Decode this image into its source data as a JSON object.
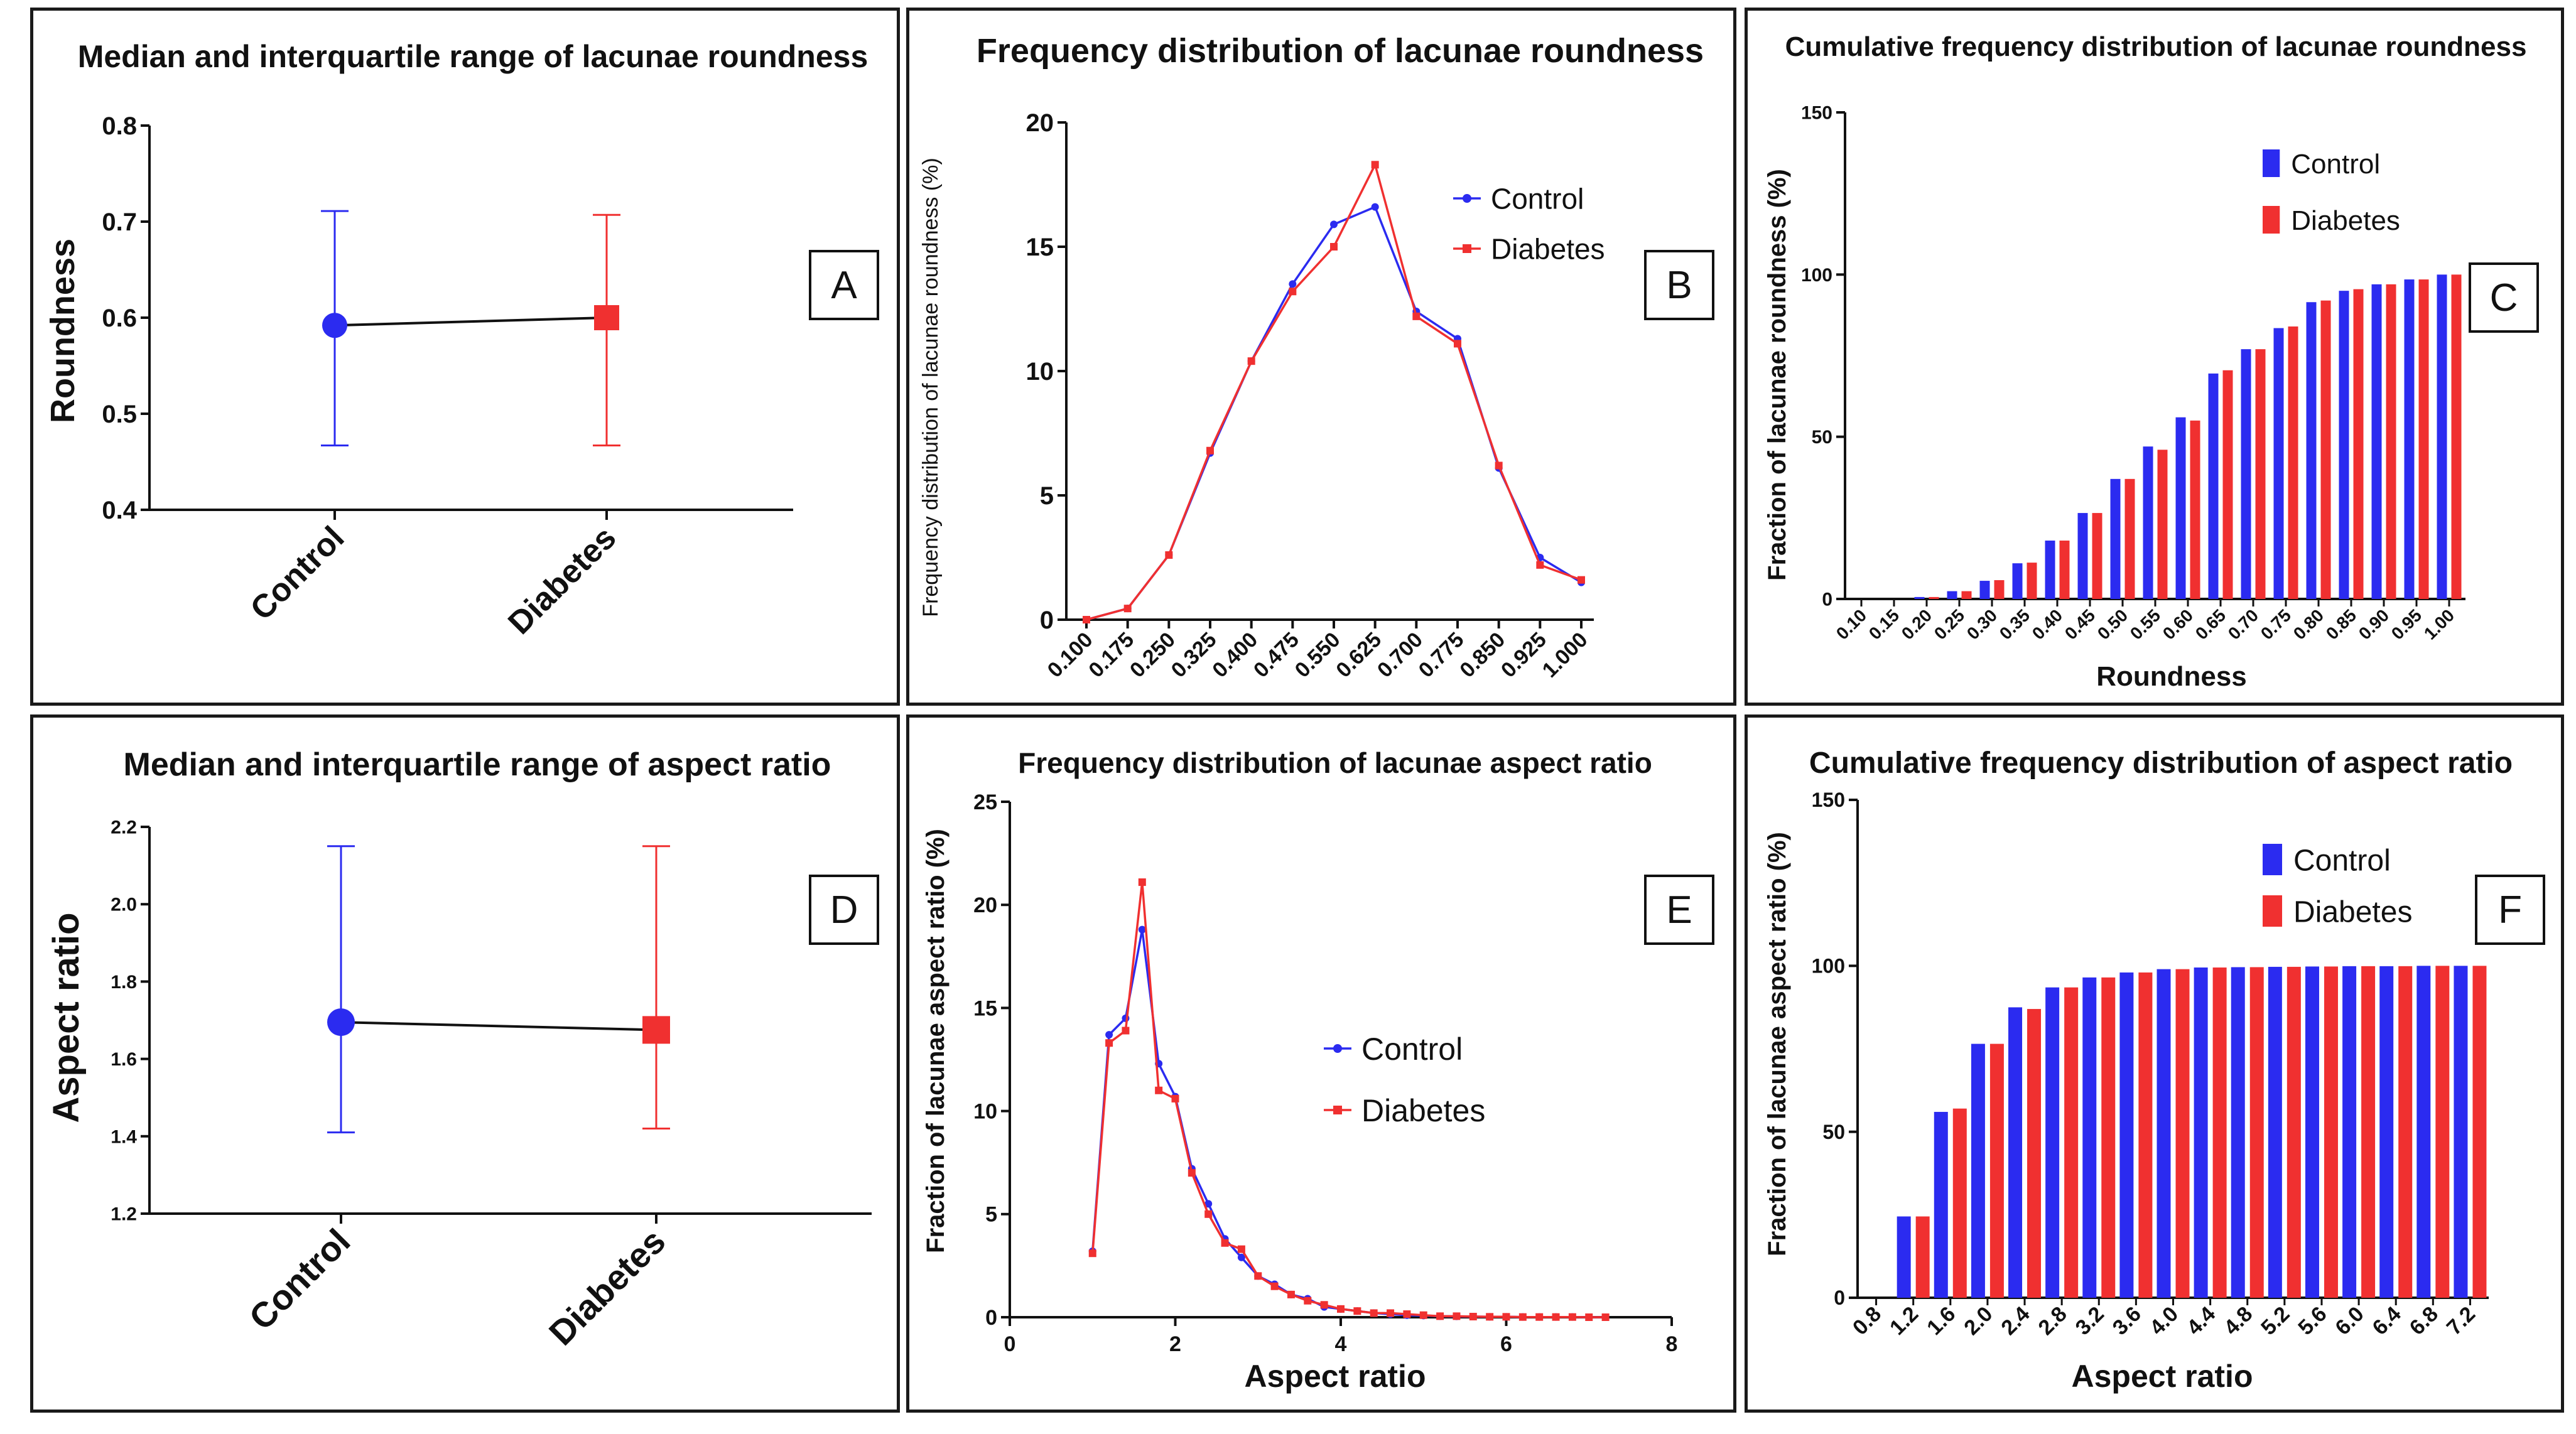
{
  "colors": {
    "control": "#2b2bf0",
    "diabetes": "#f03030",
    "axis": "#111111"
  },
  "chart_data": [
    {
      "panel": "A",
      "type": "scatter",
      "title": "Median and interquartile range of  lacunae roundness",
      "xlabel": "",
      "ylabel": "Roundness",
      "categories": [
        "Control",
        "Diabetes"
      ],
      "ylim": [
        0.4,
        0.8
      ],
      "yticks": [
        "0.4",
        "0.5",
        "0.6",
        "0.7",
        "0.8"
      ],
      "series": [
        {
          "name": "Control",
          "median": 0.592,
          "q1": 0.467,
          "q3": 0.711
        },
        {
          "name": "Diabetes",
          "median": 0.6,
          "q1": 0.467,
          "q3": 0.707
        }
      ]
    },
    {
      "panel": "B",
      "type": "line",
      "title": "Frequency distribution of lacunae roundness",
      "xlabel": "",
      "ylabel": "Frequency distribution of lacunae roundness (%)",
      "x": [
        0.1,
        0.175,
        0.25,
        0.325,
        0.4,
        0.475,
        0.55,
        0.625,
        0.7,
        0.775,
        0.85,
        0.925,
        1.0
      ],
      "xticks": [
        "0.100",
        "0.175",
        "0.250",
        "0.325",
        "0.400",
        "0.475",
        "0.550",
        "0.625",
        "0.700",
        "0.775",
        "0.850",
        "0.925",
        "1.000"
      ],
      "ylim": [
        0,
        20
      ],
      "yticks": [
        "0",
        "5",
        "10",
        "15",
        "20"
      ],
      "series": [
        {
          "name": "Control",
          "values": [
            0.0,
            0.45,
            2.6,
            6.7,
            10.4,
            13.5,
            15.9,
            16.6,
            12.4,
            11.3,
            6.1,
            2.5,
            1.5
          ]
        },
        {
          "name": "Diabetes",
          "values": [
            0.0,
            0.45,
            2.6,
            6.8,
            10.4,
            13.2,
            15.0,
            18.3,
            12.2,
            11.1,
            6.2,
            2.2,
            1.6
          ]
        }
      ],
      "legend": "top-right"
    },
    {
      "panel": "C",
      "type": "bar",
      "title": "Cumulative frequency distribution of lacunae roundness",
      "xlabel": "Roundness",
      "ylabel": "Fraction of lacunae roundness (%)",
      "categories": [
        "0.10",
        "0.15",
        "0.20",
        "0.25",
        "0.30",
        "0.35",
        "0.40",
        "0.45",
        "0.50",
        "0.55",
        "0.60",
        "0.65",
        "0.70",
        "0.75",
        "0.80",
        "0.85",
        "0.90",
        "0.95",
        "1.00"
      ],
      "ylim": [
        0,
        150
      ],
      "yticks": [
        "0",
        "50",
        "100",
        "150"
      ],
      "series": [
        {
          "name": "Control",
          "values": [
            0,
            0,
            0.6,
            2.4,
            5.6,
            11,
            18,
            26.5,
            37,
            47,
            56,
            69.5,
            77,
            83.5,
            91.5,
            95,
            97,
            98.5,
            100
          ]
        },
        {
          "name": "Diabetes",
          "values": [
            0,
            0,
            0.6,
            2.4,
            5.8,
            11.2,
            18,
            26.5,
            37,
            46,
            55,
            70.5,
            77,
            84,
            92,
            95.5,
            97,
            98.5,
            100
          ]
        }
      ],
      "legend": "top-right"
    },
    {
      "panel": "D",
      "type": "scatter",
      "title": "Median and interquartile range of aspect ratio",
      "xlabel": "",
      "ylabel": "Aspect ratio",
      "categories": [
        "Control",
        "Diabetes"
      ],
      "ylim": [
        1.2,
        2.2
      ],
      "yticks": [
        "1.2",
        "1.4",
        "1.6",
        "1.8",
        "2.0",
        "2.2"
      ],
      "series": [
        {
          "name": "Control",
          "median": 1.695,
          "q1": 1.41,
          "q3": 2.15
        },
        {
          "name": "Diabetes",
          "median": 1.675,
          "q1": 1.42,
          "q3": 2.15
        }
      ]
    },
    {
      "panel": "E",
      "type": "line",
      "title": "Frequency distribution of lacunae aspect ratio",
      "xlabel": "Aspect ratio",
      "ylabel": "Fraction of lacunae aspect ratio (%)",
      "x": [
        1.0,
        1.2,
        1.4,
        1.6,
        1.8,
        2.0,
        2.2,
        2.4,
        2.6,
        2.8,
        3.0,
        3.2,
        3.4,
        3.6,
        3.8,
        4.0,
        4.2,
        4.4,
        4.6,
        4.8,
        5.0,
        5.2,
        5.4,
        5.6,
        5.8,
        6.0,
        6.2,
        6.4,
        6.6,
        6.8,
        7.0,
        7.2
      ],
      "xlim": [
        0,
        8
      ],
      "xticks": [
        "0",
        "2",
        "4",
        "6",
        "8"
      ],
      "ylim": [
        0,
        25
      ],
      "yticks": [
        "0",
        "5",
        "10",
        "15",
        "20",
        "25"
      ],
      "series": [
        {
          "name": "Control",
          "values": [
            3.2,
            13.7,
            14.5,
            18.8,
            12.3,
            10.7,
            7.2,
            5.5,
            3.8,
            2.9,
            2.0,
            1.6,
            1.1,
            0.9,
            0.5,
            0.4,
            0.3,
            0.2,
            0.15,
            0.1,
            0.08,
            0.05,
            0.04,
            0.03,
            0.02,
            0.02,
            0.01,
            0.01,
            0.01,
            0.01,
            0.0,
            0.0
          ]
        },
        {
          "name": "Diabetes",
          "values": [
            3.1,
            13.3,
            13.9,
            21.1,
            11.0,
            10.6,
            7.0,
            5.0,
            3.6,
            3.3,
            2.0,
            1.5,
            1.1,
            0.8,
            0.6,
            0.4,
            0.3,
            0.2,
            0.2,
            0.15,
            0.1,
            0.05,
            0.05,
            0.03,
            0.02,
            0.02,
            0.01,
            0.01,
            0.01,
            0.01,
            0.0,
            0.0
          ]
        }
      ],
      "legend": "center-right"
    },
    {
      "panel": "F",
      "type": "bar",
      "title": "Cumulative frequency distribution of aspect ratio",
      "xlabel": "Aspect ratio",
      "ylabel": "Fraction of lacunae aspect ratio  (%)",
      "categories": [
        "0.8",
        "1.2",
        "1.6",
        "2.0",
        "2.4",
        "2.8",
        "3.2",
        "3.6",
        "4.0",
        "4.4",
        "4.8",
        "5.2",
        "5.6",
        "6.0",
        "6.4",
        "6.8",
        "7.2"
      ],
      "ylim": [
        0,
        150
      ],
      "yticks": [
        "0",
        "50",
        "100",
        "150"
      ],
      "series": [
        {
          "name": "Control",
          "values": [
            0,
            24.5,
            56,
            76.5,
            87.5,
            93.5,
            96.5,
            98,
            99,
            99.5,
            99.6,
            99.7,
            99.8,
            99.9,
            99.9,
            100,
            100
          ]
        },
        {
          "name": "Diabetes",
          "values": [
            0,
            24.5,
            57,
            76.5,
            87,
            93.5,
            96.5,
            98,
            99,
            99.5,
            99.6,
            99.7,
            99.8,
            99.9,
            99.9,
            100,
            100
          ]
        }
      ],
      "legend": "top-right"
    }
  ]
}
